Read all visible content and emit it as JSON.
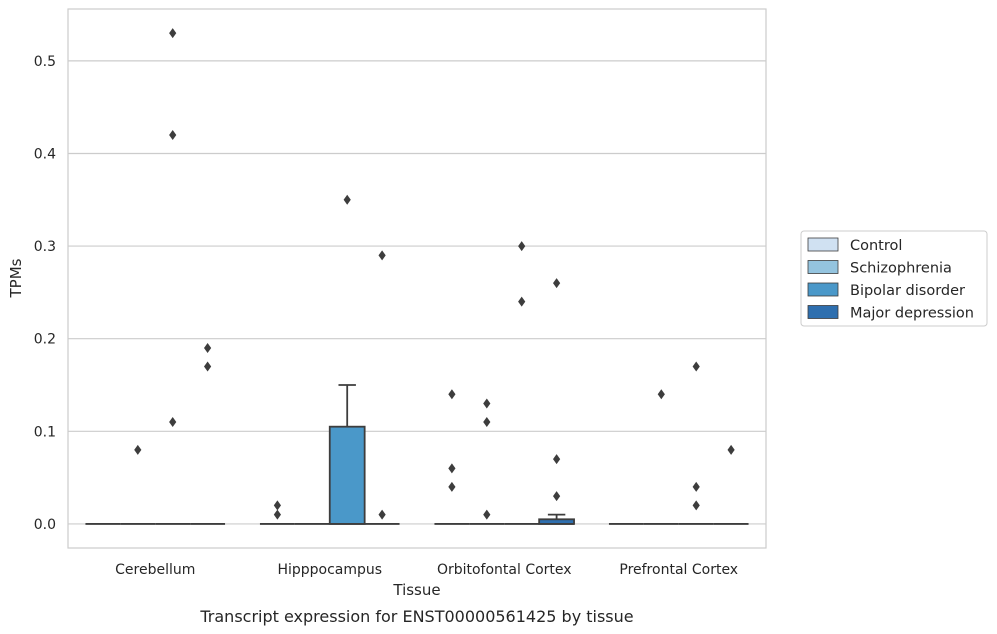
{
  "chart_data": {
    "type": "box",
    "xlabel": "Tissue",
    "ylabel": "TPMs",
    "caption": "Transcript expression for ENST00000561425 by tissue",
    "categories": [
      "Cerebellum",
      "Hipppocampus",
      "Orbitofontal Cortex",
      "Prefrontal Cortex"
    ],
    "ylim": [
      -0.026,
      0.556
    ],
    "yticks": [
      0.0,
      0.1,
      0.2,
      0.3,
      0.4,
      0.5
    ],
    "ytick_labels": [
      "0.0",
      "0.1",
      "0.2",
      "0.3",
      "0.4",
      "0.5"
    ],
    "grid": true,
    "legend_position": "right",
    "series": [
      {
        "name": "Control",
        "color": "#d0e1f2",
        "boxes": [
          {
            "q1": 0,
            "median": 0,
            "q3": 0,
            "whisker_low": 0,
            "whisker_high": 0,
            "outliers": []
          },
          {
            "q1": 0,
            "median": 0,
            "q3": 0,
            "whisker_low": 0,
            "whisker_high": 0,
            "outliers": [
              0.01,
              0.02
            ]
          },
          {
            "q1": 0,
            "median": 0,
            "q3": 0,
            "whisker_low": 0,
            "whisker_high": 0,
            "outliers": [
              0.04,
              0.06,
              0.14
            ]
          },
          {
            "q1": 0,
            "median": 0,
            "q3": 0,
            "whisker_low": 0,
            "whisker_high": 0,
            "outliers": []
          }
        ]
      },
      {
        "name": "Schizophrenia",
        "color": "#94c4df",
        "boxes": [
          {
            "q1": 0,
            "median": 0,
            "q3": 0,
            "whisker_low": 0,
            "whisker_high": 0,
            "outliers": [
              0.08
            ]
          },
          {
            "q1": 0,
            "median": 0,
            "q3": 0,
            "whisker_low": 0,
            "whisker_high": 0,
            "outliers": []
          },
          {
            "q1": 0,
            "median": 0,
            "q3": 0,
            "whisker_low": 0,
            "whisker_high": 0,
            "outliers": [
              0.01,
              0.11,
              0.13
            ]
          },
          {
            "q1": 0,
            "median": 0,
            "q3": 0,
            "whisker_low": 0,
            "whisker_high": 0,
            "outliers": [
              0.14
            ]
          }
        ]
      },
      {
        "name": "Bipolar disorder",
        "color": "#4a98c9",
        "boxes": [
          {
            "q1": 0,
            "median": 0,
            "q3": 0,
            "whisker_low": 0,
            "whisker_high": 0,
            "outliers": [
              0.11,
              0.42,
              0.53
            ]
          },
          {
            "q1": 0,
            "median": 0,
            "q3": 0.105,
            "whisker_low": 0,
            "whisker_high": 0.15,
            "outliers": [
              0.35
            ]
          },
          {
            "q1": 0,
            "median": 0,
            "q3": 0,
            "whisker_low": 0,
            "whisker_high": 0,
            "outliers": [
              0.24,
              0.3
            ]
          },
          {
            "q1": 0,
            "median": 0,
            "q3": 0,
            "whisker_low": 0,
            "whisker_high": 0,
            "outliers": [
              0.02,
              0.04,
              0.17
            ]
          }
        ]
      },
      {
        "name": "Major depression",
        "color": "#2e6faf",
        "boxes": [
          {
            "q1": 0,
            "median": 0,
            "q3": 0,
            "whisker_low": 0,
            "whisker_high": 0,
            "outliers": [
              0.17,
              0.19
            ]
          },
          {
            "q1": 0,
            "median": 0,
            "q3": 0,
            "whisker_low": 0,
            "whisker_high": 0,
            "outliers": [
              0.01,
              0.29
            ]
          },
          {
            "q1": 0,
            "median": 0,
            "q3": 0.005,
            "whisker_low": 0,
            "whisker_high": 0.01,
            "outliers": [
              0.03,
              0.07,
              0.26
            ]
          },
          {
            "q1": 0,
            "median": 0,
            "q3": 0,
            "whisker_low": 0,
            "whisker_high": 0,
            "outliers": [
              0.08
            ]
          }
        ]
      }
    ]
  }
}
